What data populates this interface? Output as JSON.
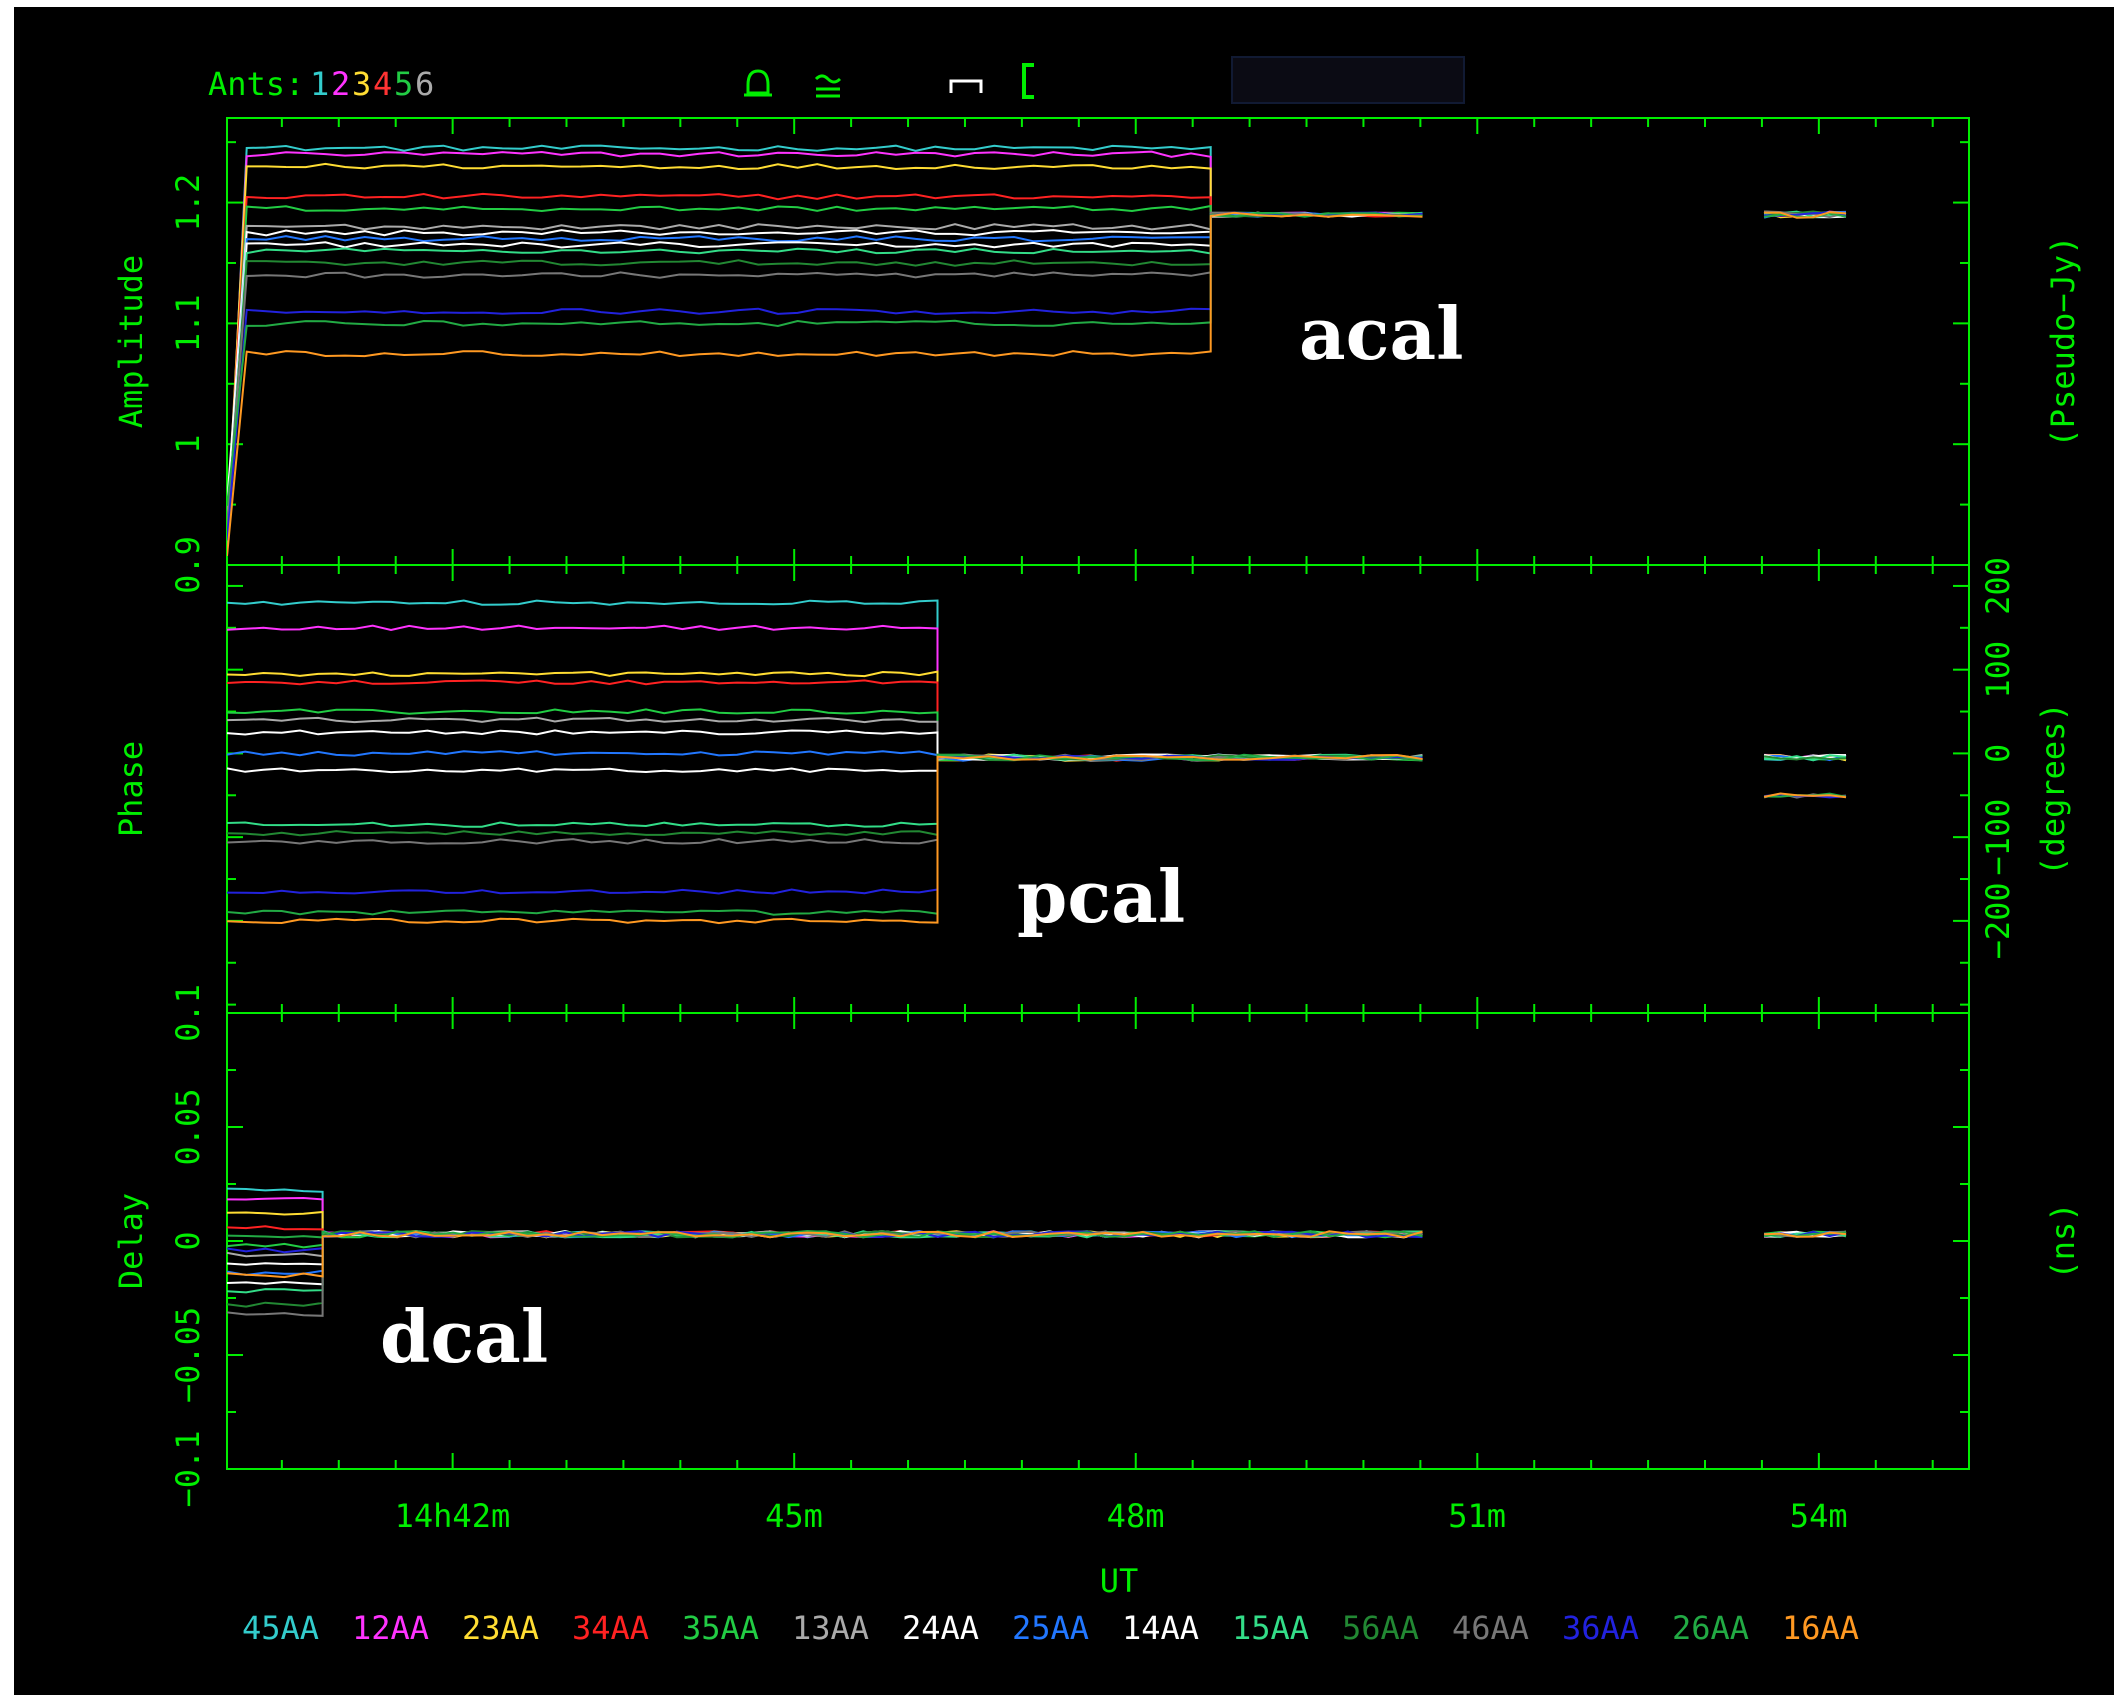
{
  "header": {
    "ants_prefix": "Ants:",
    "ants": [
      {
        "label": "1",
        "color": "#33cccc"
      },
      {
        "label": "2",
        "color": "#ff33ff"
      },
      {
        "label": "3",
        "color": "#ffdd33"
      },
      {
        "label": "4",
        "color": "#ff3333"
      },
      {
        "label": "5",
        "color": "#22cc44"
      },
      {
        "label": "6",
        "color": "#aaaaaa"
      }
    ],
    "icons": [
      "bell-icon",
      "approx-icon",
      "bracket-icon",
      "open-bracket-icon"
    ]
  },
  "colors": {
    "axis": "#00ee00",
    "background": "#000000"
  },
  "annotations": {
    "acal": "acal",
    "pcal": "pcal",
    "dcal": "dcal"
  },
  "chart_data": [
    {
      "type": "line",
      "panel": "amplitude",
      "ylabel": "Amplitude",
      "right_label": "(Pseudo−Jy)",
      "ylim": [
        0.9,
        1.27
      ],
      "yticks": [
        0.9,
        1,
        1.1,
        1.2
      ],
      "ytick_labels": [
        "0.9",
        "1",
        "1.1",
        "1.2"
      ],
      "segments": [
        {
          "x_start": 14.667,
          "x_end": 14.811,
          "points": 51
        },
        {
          "x_start": 14.811,
          "x_end": 14.842,
          "points": 10
        },
        {
          "x_start": 14.892,
          "x_end": 14.904,
          "points": 6
        }
      ],
      "baselines": [
        1.245,
        1.24,
        1.23,
        1.205,
        1.195,
        1.18,
        1.175,
        1.17,
        1.165,
        1.16,
        1.15,
        1.14,
        1.11,
        1.1,
        1.075
      ],
      "converge": 1.19
    },
    {
      "type": "line",
      "panel": "phase",
      "ylabel": "Phase",
      "right_label": "(degrees)",
      "ylim": [
        -310,
        225
      ],
      "yticks": [
        -200,
        -100,
        0,
        100,
        200
      ],
      "ytick_labels": [
        "−200",
        "−100",
        "0",
        "100",
        "200"
      ],
      "segments": [
        {
          "x_start": 14.667,
          "x_end": 14.771,
          "points": 40
        },
        {
          "x_start": 14.771,
          "x_end": 14.842,
          "points": 20
        },
        {
          "x_start": 14.892,
          "x_end": 14.904,
          "points": 6
        }
      ],
      "baselines": [
        180,
        150,
        95,
        85,
        50,
        40,
        25,
        0,
        -20,
        -85,
        -95,
        -105,
        -165,
        -190,
        -200
      ],
      "converge": -5
    },
    {
      "type": "line",
      "panel": "delay",
      "ylabel": "Delay",
      "right_label": "(ns)",
      "xlabel": "UT",
      "ylim": [
        -0.1,
        0.1
      ],
      "yticks": [
        -0.1,
        -0.05,
        0,
        0.05,
        0.1
      ],
      "ytick_labels": [
        "−0.1",
        "−0.05",
        "0",
        "0.05",
        "0.1"
      ],
      "xlim": [
        14.667,
        14.922
      ],
      "xticks": [
        14.7,
        14.75,
        14.8,
        14.85,
        14.9
      ],
      "xtick_labels": [
        "14h42m",
        "45m",
        "48m",
        "51m",
        "54m"
      ],
      "segments": [
        {
          "x_start": 14.667,
          "x_end": 14.681,
          "points": 6
        },
        {
          "x_start": 14.681,
          "x_end": 14.842,
          "points": 60
        },
        {
          "x_start": 14.892,
          "x_end": 14.904,
          "points": 6
        }
      ],
      "baselines": [
        0.022,
        0.018,
        0.012,
        0.006,
        -0.002,
        -0.006,
        -0.01,
        -0.014,
        -0.018,
        -0.022,
        -0.028,
        -0.032,
        -0.004,
        0.002,
        -0.015
      ],
      "converge": 0.003
    }
  ],
  "legend": {
    "position": "bottom",
    "items": [
      {
        "label": "45AA",
        "color": "#33cccc"
      },
      {
        "label": "12AA",
        "color": "#ff33ff"
      },
      {
        "label": "23AA",
        "color": "#ffdd33"
      },
      {
        "label": "34AA",
        "color": "#ff2222"
      },
      {
        "label": "35AA",
        "color": "#22cc44"
      },
      {
        "label": "13AA",
        "color": "#aaaaaa"
      },
      {
        "label": "24AA",
        "color": "#ffffff"
      },
      {
        "label": "25AA",
        "color": "#2277ff"
      },
      {
        "label": "14AA",
        "color": "#ffffff"
      },
      {
        "label": "15AA",
        "color": "#33dd88"
      },
      {
        "label": "56AA",
        "color": "#228833"
      },
      {
        "label": "46AA",
        "color": "#777777"
      },
      {
        "label": "36AA",
        "color": "#2222dd"
      },
      {
        "label": "26AA",
        "color": "#22aa44"
      },
      {
        "label": "16AA",
        "color": "#ff9922"
      }
    ]
  }
}
